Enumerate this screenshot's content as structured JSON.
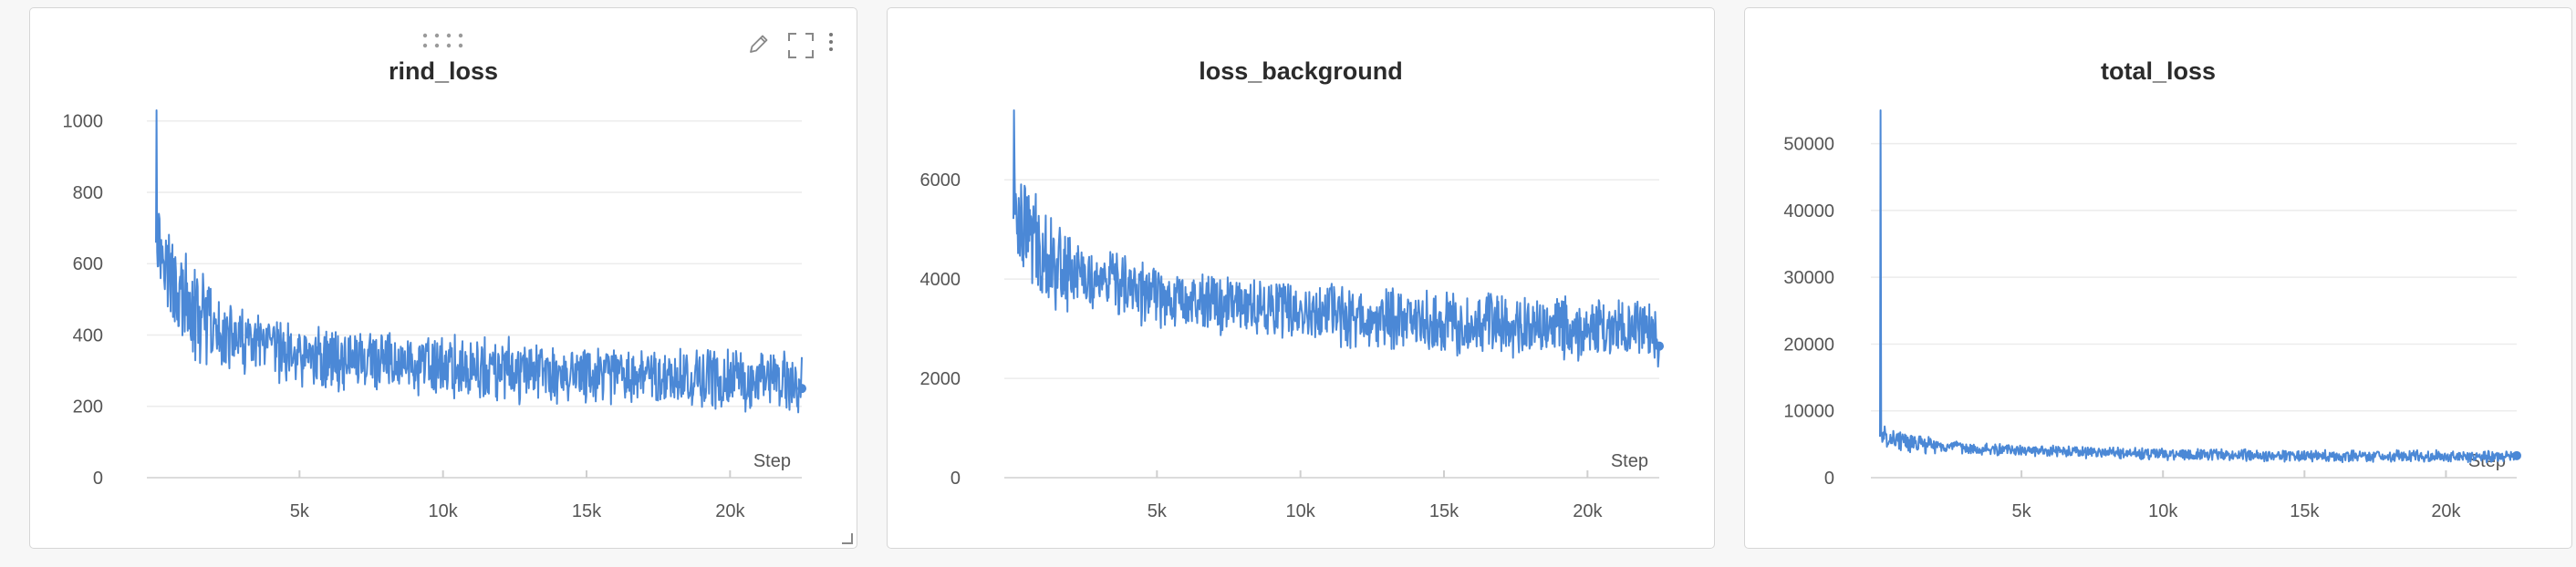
{
  "panels": [
    {
      "title": "rind_loss",
      "toolbar": {
        "drag_handle": "drag-handle-icon",
        "edit_icon": "pencil-icon",
        "expand_icon": "fullscreen-icon",
        "menu_icon": "more-vertical-icon"
      }
    },
    {
      "title": "loss_background"
    },
    {
      "title": "total_loss"
    }
  ],
  "chart_data": [
    {
      "type": "line",
      "title": "rind_loss",
      "xlabel": "Step",
      "ylabel": "",
      "xlim": [
        0,
        22500
      ],
      "ylim": [
        0,
        1030
      ],
      "xticks": [
        5000,
        10000,
        15000,
        20000
      ],
      "xtick_labels": [
        "5k",
        "10k",
        "15k",
        "20k"
      ],
      "yticks": [
        0,
        200,
        400,
        600,
        800,
        1000
      ],
      "ytick_labels": [
        "0",
        "200",
        "400",
        "600",
        "800",
        "1000"
      ],
      "grid": true,
      "color": "#4b88d6",
      "x": [
        0,
        500,
        1000,
        1500,
        2000,
        3000,
        4000,
        5000,
        6000,
        7000,
        8000,
        9000,
        10000,
        11000,
        12000,
        13000,
        14000,
        15000,
        16000,
        17000,
        18000,
        19000,
        20000,
        21000,
        22000,
        22500
      ],
      "y": [
        700,
        560,
        480,
        440,
        410,
        380,
        360,
        340,
        335,
        330,
        320,
        315,
        310,
        300,
        300,
        295,
        290,
        285,
        285,
        280,
        280,
        278,
        275,
        272,
        270,
        250
      ],
      "peak": {
        "x": 0,
        "y": 1030
      }
    },
    {
      "type": "line",
      "title": "loss_background",
      "xlabel": "Step",
      "ylabel": "",
      "xlim": [
        0,
        22500
      ],
      "ylim": [
        0,
        7400
      ],
      "xticks": [
        5000,
        10000,
        15000,
        20000
      ],
      "xtick_labels": [
        "5k",
        "10k",
        "15k",
        "20k"
      ],
      "yticks": [
        0,
        2000,
        4000,
        6000
      ],
      "ytick_labels": [
        "0",
        "2000",
        "4000",
        "6000"
      ],
      "grid": true,
      "color": "#4b88d6",
      "x": [
        0,
        500,
        1000,
        1500,
        2000,
        3000,
        4000,
        5000,
        6000,
        7000,
        8000,
        9000,
        10000,
        11000,
        12000,
        13000,
        14000,
        15000,
        16000,
        17000,
        18000,
        19000,
        20000,
        21000,
        22000,
        22500
      ],
      "y": [
        5600,
        5000,
        4600,
        4300,
        4150,
        3950,
        3800,
        3700,
        3600,
        3550,
        3450,
        3400,
        3350,
        3300,
        3250,
        3200,
        3150,
        3120,
        3100,
        3080,
        3050,
        3020,
        3000,
        2980,
        2950,
        2650
      ],
      "peak": {
        "x": 0,
        "y": 7400
      }
    },
    {
      "type": "line",
      "title": "total_loss",
      "xlabel": "Step",
      "ylabel": "",
      "xlim": [
        0,
        22500
      ],
      "ylim": [
        0,
        55000
      ],
      "xticks": [
        5000,
        10000,
        15000,
        20000
      ],
      "xtick_labels": [
        "5k",
        "10k",
        "15k",
        "20k"
      ],
      "yticks": [
        0,
        10000,
        20000,
        30000,
        40000,
        50000
      ],
      "ytick_labels": [
        "0",
        "10000",
        "20000",
        "30000",
        "40000",
        "50000"
      ],
      "grid": true,
      "color": "#4b88d6",
      "x": [
        0,
        500,
        1000,
        1500,
        2000,
        3000,
        4000,
        5000,
        6000,
        7000,
        8000,
        9000,
        10000,
        11000,
        12000,
        13000,
        14000,
        15000,
        16000,
        17000,
        18000,
        19000,
        20000,
        21000,
        22000,
        22500
      ],
      "y": [
        6500,
        5800,
        5200,
        5000,
        4700,
        4400,
        4200,
        4000,
        3900,
        3800,
        3700,
        3600,
        3550,
        3500,
        3450,
        3400,
        3350,
        3300,
        3250,
        3250,
        3200,
        3200,
        3150,
        3150,
        3100,
        3300
      ],
      "peak": {
        "x": 0,
        "y": 55000
      }
    }
  ]
}
